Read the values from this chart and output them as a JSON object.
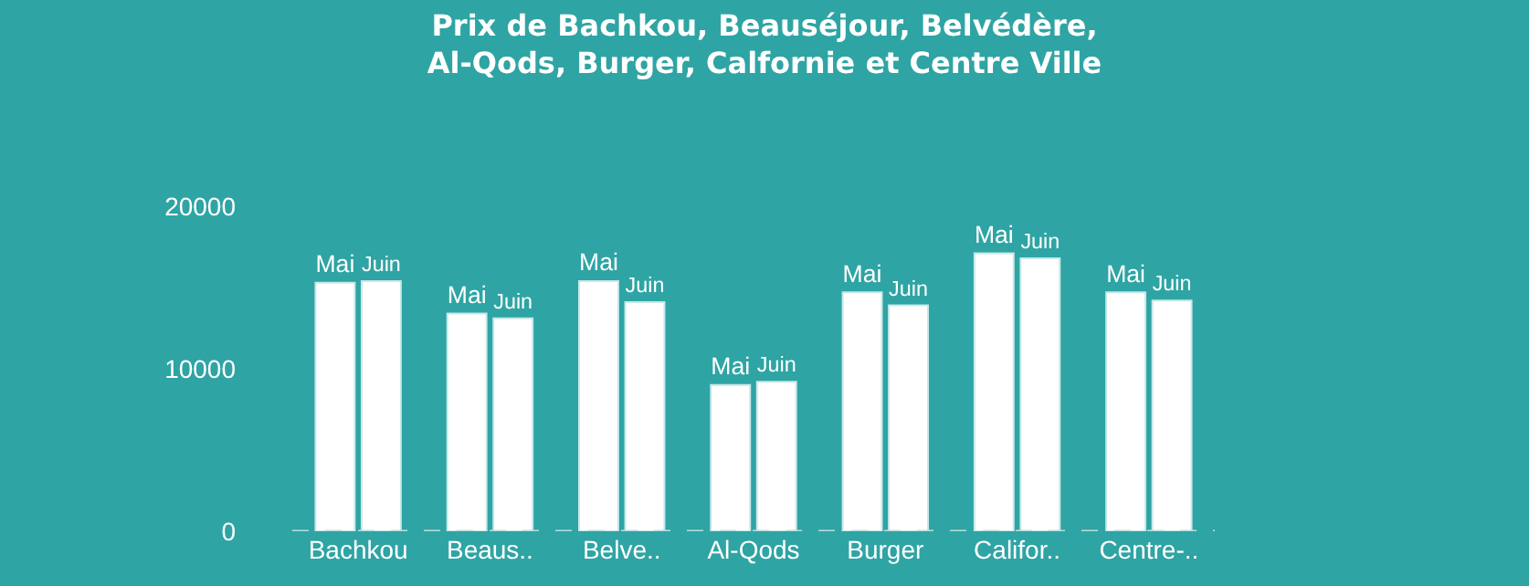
{
  "chart_data": {
    "type": "bar",
    "title": "Prix de Bachkou, Beauséjour, Belvédère,\nAl-Qods, Burger, Calfornie et Centre Ville",
    "categories": [
      "Bachkou",
      "Beaus..",
      "Belve..",
      "Al-Qods",
      "Burger",
      "Califor..",
      "Centre-.."
    ],
    "series": [
      {
        "name": "Mai",
        "color": "#ffffff",
        "values": [
          15300,
          13400,
          15400,
          9000,
          14700,
          17100,
          14700
        ]
      },
      {
        "name": "Juin",
        "color": "#ffffff",
        "values": [
          15400,
          13100,
          14100,
          9200,
          13900,
          16800,
          14200
        ]
      }
    ],
    "ylim": [
      0,
      20000
    ],
    "yticks": [
      0,
      10000,
      20000
    ],
    "grid": false,
    "legend": false,
    "ref_lines": [
      {
        "axis": "y",
        "value": 0,
        "color": "#b9dede",
        "line_style": "dashed"
      }
    ]
  }
}
